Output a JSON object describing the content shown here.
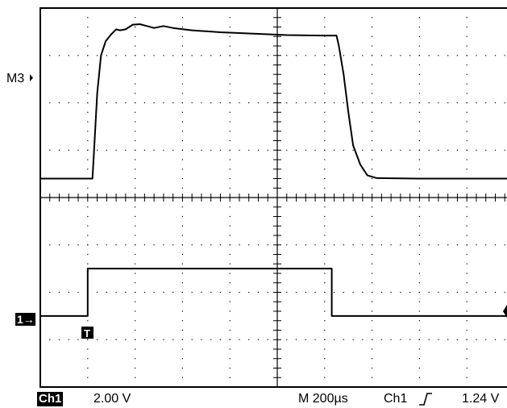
{
  "screen": {
    "divisions_x": 10,
    "divisions_y": 8,
    "colors": {
      "background": "#ffffff",
      "trace": "#000000",
      "grid_dots": "#000000"
    }
  },
  "markers": {
    "math_label": "M3",
    "ch1_label": "1→",
    "trigger_label": "T"
  },
  "status": {
    "channel_badge": "Ch1",
    "channel_scale": "2.00 V",
    "timebase": "M  200µs",
    "trigger_source": "Ch1",
    "trigger_slope_icon": "rising-edge-icon",
    "trigger_level": "1.24 V"
  },
  "chart_data": {
    "type": "line",
    "x_unit": "div",
    "y_unit": "div",
    "xlim": [
      0,
      10
    ],
    "ylim": [
      -4,
      4
    ],
    "series": [
      {
        "values": [
          [
            0,
            0.4
          ],
          [
            1.1,
            0.4
          ],
          [
            1.13,
            0.9
          ],
          [
            1.2,
            2.2
          ],
          [
            1.28,
            3.0
          ],
          [
            1.38,
            3.3
          ],
          [
            1.5,
            3.45
          ],
          [
            1.6,
            3.55
          ],
          [
            1.68,
            3.53
          ],
          [
            1.8,
            3.55
          ],
          [
            1.95,
            3.65
          ],
          [
            2.1,
            3.66
          ],
          [
            2.25,
            3.62
          ],
          [
            2.4,
            3.58
          ],
          [
            2.6,
            3.62
          ],
          [
            2.8,
            3.58
          ],
          [
            3.2,
            3.53
          ],
          [
            3.8,
            3.49
          ],
          [
            4.5,
            3.46
          ],
          [
            5.2,
            3.43
          ],
          [
            6.0,
            3.42
          ],
          [
            6.25,
            3.42
          ],
          [
            6.3,
            3.2
          ],
          [
            6.4,
            2.6
          ],
          [
            6.5,
            1.8
          ],
          [
            6.6,
            1.1
          ],
          [
            6.75,
            0.7
          ],
          [
            6.9,
            0.47
          ],
          [
            7.1,
            0.41
          ],
          [
            8.0,
            0.4
          ],
          [
            10,
            0.4
          ]
        ]
      },
      {
        "values": [
          [
            0,
            -2.5
          ],
          [
            1.0,
            -2.5
          ],
          [
            1.0,
            -1.5
          ],
          [
            3.5,
            -1.5
          ],
          [
            6.15,
            -1.5
          ],
          [
            6.15,
            -2.5
          ],
          [
            10,
            -2.5
          ]
        ]
      }
    ]
  }
}
